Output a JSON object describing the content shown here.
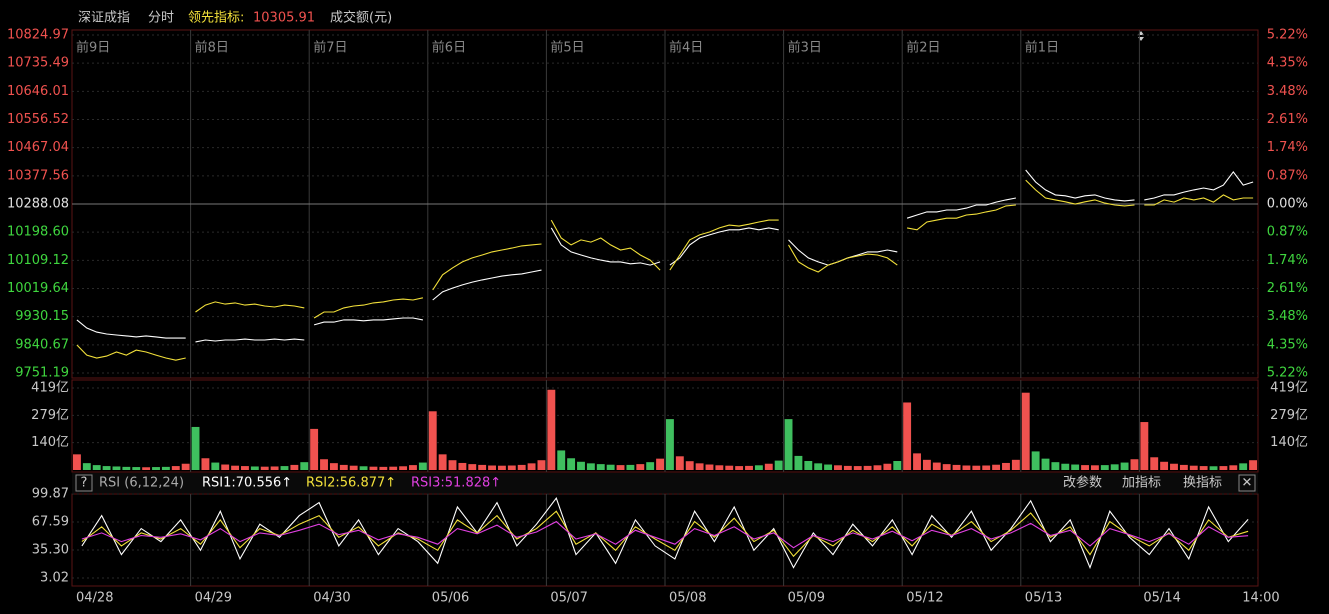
{
  "chart_data": [
    {
      "type": "line",
      "mode": "分时",
      "lead_value": 10305.91,
      "day_labels": [
        "前9日",
        "前8日",
        "前7日",
        "前6日",
        "前5日",
        "前4日",
        "前3日",
        "前2日",
        "前1日"
      ],
      "ylim": [
        9751.19,
        10824.97
      ],
      "yticks": [
        10824.97,
        10735.49,
        10646.01,
        10556.52,
        10467.04,
        10377.56,
        10288.08,
        {
          "value": 10198.6,
          "label": "10198.60"
        },
        10109.12,
        10019.64,
        9930.15,
        9840.67,
        9751.19
      ],
      "y2lim": [
        -5.22,
        5.22
      ],
      "y2ticks": [
        {
          "value": 5.22,
          "label": "5.22%"
        },
        {
          "value": 4.35,
          "label": "4.35%"
        },
        {
          "value": 3.48,
          "label": "3.48%"
        },
        {
          "value": 2.61,
          "label": "2.61%"
        },
        {
          "value": 1.74,
          "label": "1.74%"
        },
        {
          "value": 0.87,
          "label": "0.87%"
        },
        {
          "value": 0,
          "label": "0.00%"
        },
        {
          "value": -0.87,
          "label": "0.87%"
        },
        {
          "value": -1.74,
          "label": "1.74%"
        },
        {
          "value": -2.61,
          "label": "2.61%"
        },
        {
          "value": -3.48,
          "label": "3.48%"
        },
        {
          "value": -4.35,
          "label": "4.35%"
        },
        {
          "value": -5.22,
          "label": "5.22%"
        }
      ],
      "series": [
        {
          "name": "深证成指",
          "color": "#ffffff",
          "values": [
            9920,
            9894,
            9881,
            9875,
            9872,
            9869,
            9866,
            9869,
            9866,
            9862,
            9862,
            9862,
            9850,
            9856,
            9853,
            9856,
            9856,
            9859,
            9856,
            9856,
            9859,
            9856,
            9859,
            9856,
            9904,
            9913,
            9913,
            9920,
            9920,
            9917,
            9920,
            9920,
            9923,
            9926,
            9926,
            9920,
            9983,
            10009,
            10021,
            10031,
            10040,
            10047,
            10053,
            10059,
            10063,
            10066,
            10072,
            10078,
            10212,
            10158,
            10136,
            10126,
            10117,
            10110,
            10104,
            10104,
            10098,
            10101,
            10094,
            10104,
            10094,
            10117,
            10158,
            10180,
            10190,
            10199,
            10206,
            10206,
            10212,
            10206,
            10212,
            10206,
            10174,
            10142,
            10117,
            10104,
            10094,
            10104,
            10117,
            10126,
            10136,
            10136,
            10142,
            10136,
            10243,
            10253,
            10263,
            10263,
            10269,
            10269,
            10275,
            10285,
            10285,
            10294,
            10301,
            10307,
            10396,
            10358,
            10333,
            10317,
            10314,
            10307,
            10314,
            10317,
            10307,
            10301,
            10298,
            10301,
            10301,
            10307,
            10317,
            10317,
            10326,
            10333,
            10339,
            10333,
            10348,
            10390,
            10348,
            10358
          ]
        },
        {
          "name": "领先指标:",
          "color": "#f2e03a",
          "values": [
            9840,
            9808,
            9799,
            9805,
            9818,
            9808,
            9824,
            9818,
            9808,
            9799,
            9792,
            9799,
            9945,
            9967,
            9977,
            9970,
            9974,
            9967,
            9970,
            9964,
            9961,
            9967,
            9964,
            9958,
            9926,
            9945,
            9945,
            9958,
            9964,
            9967,
            9974,
            9977,
            9983,
            9986,
            9983,
            9990,
            10015,
            10063,
            10085,
            10104,
            10117,
            10126,
            10136,
            10142,
            10148,
            10155,
            10158,
            10161,
            10237,
            10180,
            10158,
            10174,
            10167,
            10180,
            10158,
            10142,
            10148,
            10126,
            10110,
            10078,
            10078,
            10126,
            10174,
            10190,
            10199,
            10212,
            10221,
            10218,
            10224,
            10231,
            10237,
            10237,
            10158,
            10104,
            10085,
            10072,
            10094,
            10104,
            10117,
            10123,
            10129,
            10126,
            10117,
            10094,
            10212,
            10206,
            10231,
            10237,
            10243,
            10243,
            10253,
            10256,
            10263,
            10269,
            10282,
            10285,
            10364,
            10333,
            10307,
            10301,
            10295,
            10288,
            10295,
            10301,
            10291,
            10285,
            10282,
            10285,
            10285,
            10285,
            10301,
            10294,
            10307,
            10301,
            10307,
            10294,
            10317,
            10301,
            10307,
            10307
          ]
        }
      ]
    },
    {
      "type": "bar",
      "title": "成交额(元)",
      "up_color": "#f0524f",
      "down_color": "#3fbf5f",
      "ylim": [
        0,
        419
      ],
      "yticks": [
        {
          "value": 140,
          "label": "140亿"
        },
        {
          "value": 279,
          "label": "279亿"
        },
        {
          "value": 419,
          "label": "419亿"
        }
      ],
      "values": [
        80,
        35,
        25,
        20,
        18,
        16,
        15,
        14,
        15,
        16,
        20,
        32,
        220,
        60,
        38,
        28,
        22,
        20,
        18,
        17,
        18,
        20,
        26,
        40,
        210,
        55,
        35,
        26,
        22,
        19,
        17,
        16,
        17,
        19,
        25,
        38,
        300,
        80,
        50,
        36,
        30,
        26,
        23,
        22,
        23,
        26,
        34,
        50,
        410,
        100,
        60,
        42,
        34,
        30,
        27,
        25,
        26,
        30,
        40,
        58,
        260,
        70,
        45,
        34,
        28,
        24,
        22,
        20,
        21,
        24,
        32,
        48,
        260,
        72,
        46,
        34,
        28,
        24,
        21,
        20,
        21,
        24,
        32,
        46,
        345,
        85,
        52,
        38,
        30,
        26,
        23,
        22,
        23,
        27,
        36,
        52,
        395,
        95,
        58,
        40,
        32,
        28,
        25,
        24,
        25,
        29,
        38,
        55,
        245,
        65,
        42,
        32,
        26,
        22,
        20,
        19,
        20,
        24,
        34,
        50
      ]
    },
    {
      "type": "line",
      "title": "RSI (6,12,24)",
      "categories": [
        "04/28",
        null,
        null,
        null,
        null,
        null,
        "04/29",
        null,
        null,
        null,
        null,
        null,
        "04/30",
        null,
        null,
        null,
        null,
        null,
        "05/06",
        null,
        null,
        null,
        null,
        null,
        "05/07",
        null,
        null,
        null,
        null,
        null,
        "05/08",
        null,
        null,
        null,
        null,
        null,
        "05/09",
        null,
        null,
        null,
        null,
        null,
        "05/12",
        null,
        null,
        null,
        null,
        null,
        "05/13",
        null,
        null,
        null,
        null,
        null,
        "05/14",
        null,
        null,
        null,
        null,
        "14:00"
      ],
      "ylim": [
        3.02,
        99.87
      ],
      "yticks": [
        3.02,
        {
          "value": 35.3,
          "label": "35.30"
        },
        67.59,
        99.87
      ],
      "series": [
        {
          "name": "RSI1:70.556↑",
          "color": "#ffffff",
          "values": [
            40,
            75,
            30,
            60,
            45,
            70,
            35,
            80,
            25,
            65,
            50,
            75,
            90,
            40,
            70,
            30,
            60,
            45,
            20,
            85,
            55,
            90,
            40,
            65,
            95,
            30,
            55,
            20,
            70,
            40,
            25,
            80,
            45,
            85,
            35,
            60,
            15,
            55,
            30,
            65,
            40,
            70,
            30,
            75,
            50,
            80,
            35,
            60,
            92,
            45,
            70,
            15,
            80,
            50,
            30,
            60,
            25,
            85,
            45,
            70.556
          ]
        },
        {
          "name": "RSI2:56.877↑",
          "color": "#f2e03a",
          "values": [
            45,
            62,
            40,
            55,
            48,
            60,
            42,
            70,
            38,
            60,
            52,
            65,
            75,
            50,
            62,
            40,
            55,
            48,
            35,
            70,
            55,
            75,
            48,
            60,
            80,
            42,
            55,
            35,
            62,
            48,
            35,
            68,
            50,
            72,
            45,
            58,
            28,
            52,
            40,
            58,
            45,
            62,
            40,
            65,
            52,
            68,
            45,
            58,
            78,
            50,
            62,
            30,
            68,
            52,
            40,
            55,
            35,
            70,
            50,
            56.877
          ]
        },
        {
          "name": "RSI3:51.828↑",
          "color": "#e040e0",
          "values": [
            48,
            55,
            45,
            52,
            50,
            54,
            47,
            60,
            45,
            55,
            52,
            58,
            65,
            53,
            58,
            47,
            54,
            50,
            42,
            60,
            54,
            64,
            50,
            56,
            68,
            48,
            54,
            42,
            58,
            50,
            42,
            60,
            52,
            62,
            48,
            55,
            38,
            52,
            45,
            55,
            48,
            57,
            46,
            58,
            52,
            60,
            48,
            55,
            66,
            52,
            58,
            40,
            60,
            53,
            45,
            54,
            42,
            62,
            50,
            51.828
          ]
        }
      ]
    }
  ],
  "toolbar": {
    "help": "?",
    "buttons": [
      "改参数",
      "加指标",
      "换指标"
    ],
    "close": "✕"
  }
}
